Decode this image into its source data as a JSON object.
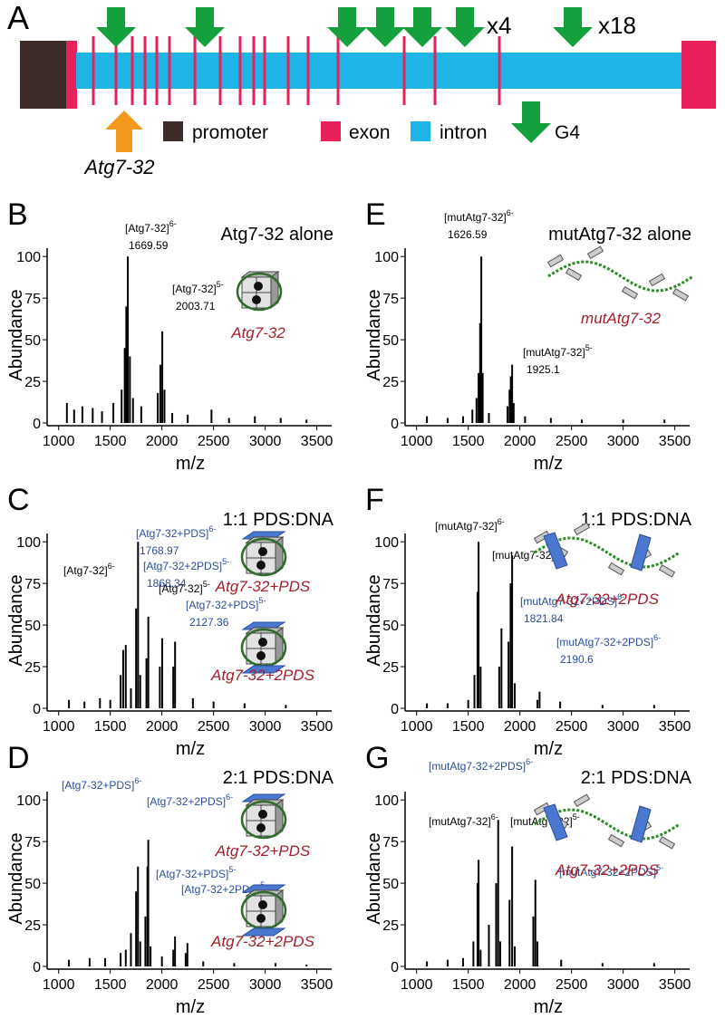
{
  "panel_a": {
    "letter": "A",
    "multipliers": [
      "x4",
      "x18"
    ],
    "probe": "Atg7-32",
    "legend": [
      "promoter",
      "exon",
      "intron",
      "G4"
    ]
  },
  "chart_data": [
    {
      "panel": "B",
      "type": "spectrum",
      "title": "Atg7-32 alone",
      "x_label": "m/z",
      "y_label": "Abundance",
      "color": "#000000",
      "xlim": [
        950,
        3600
      ],
      "xticks": [
        1000,
        1500,
        2000,
        2500,
        3000,
        3500
      ],
      "ylim": [
        0,
        105
      ],
      "yticks": [
        0,
        25,
        50,
        75,
        100
      ],
      "x": [
        1080,
        1150,
        1230,
        1330,
        1420,
        1530,
        1610,
        1640,
        1655,
        1669.59,
        1690,
        1720,
        1800,
        1960,
        1985,
        2003.71,
        2025,
        2100,
        2250,
        2480,
        2650,
        2900,
        3150,
        3400
      ],
      "values": [
        12,
        8,
        10,
        9,
        7,
        12,
        20,
        45,
        70,
        100,
        40,
        15,
        10,
        18,
        35,
        55,
        20,
        6,
        5,
        8,
        3,
        4,
        3,
        2
      ],
      "annotations": [
        {
          "label": "[Atg7-32]",
          "charge": "6-",
          "mz": "1669.59",
          "color": "#000000"
        },
        {
          "label": "[Atg7-32]",
          "charge": "5-",
          "mz": "2003.71",
          "color": "#000000"
        }
      ],
      "inset_labels": [
        "Atg7-32"
      ]
    },
    {
      "panel": "C",
      "type": "spectrum",
      "title": "1:1 PDS:DNA",
      "x_label": "m/z",
      "y_label": "Abundance",
      "color": "#000000",
      "xlim": [
        950,
        3600
      ],
      "xticks": [
        1000,
        1500,
        2000,
        2500,
        3000,
        3500
      ],
      "ylim": [
        0,
        105
      ],
      "yticks": [
        0,
        25,
        50,
        75,
        100
      ],
      "x": [
        1100,
        1250,
        1400,
        1500,
        1600,
        1625,
        1650,
        1700,
        1750,
        1768.97,
        1790,
        1850,
        1868.34,
        1980,
        2003,
        2110,
        2127.36,
        2300,
        2500,
        2800,
        3200
      ],
      "values": [
        5,
        4,
        6,
        5,
        20,
        35,
        38,
        12,
        60,
        100,
        20,
        30,
        55,
        25,
        42,
        25,
        40,
        6,
        4,
        3,
        2
      ],
      "annotations": [
        {
          "label": "[Atg7-32+PDS]",
          "charge": "6-",
          "mz": "1768.97",
          "color": "#2a4d9c"
        },
        {
          "label": "[Atg7-32+2PDS]",
          "charge": "5-",
          "mz": "1868.34",
          "color": "#2a4d9c"
        },
        {
          "label": "[Atg7-32]",
          "charge": "6-",
          "color": "#000000"
        },
        {
          "label": "[Atg7-32]",
          "charge": "5-",
          "color": "#000000"
        },
        {
          "label": "[Atg7-32+PDS]",
          "charge": "5-",
          "mz": "2127.36",
          "color": "#2a4d9c"
        }
      ],
      "inset_labels": [
        "Atg7-32+PDS",
        "Atg7-32+2PDS"
      ]
    },
    {
      "panel": "D",
      "type": "spectrum",
      "title": "2:1 PDS:DNA",
      "x_label": "m/z",
      "y_label": "Abundance",
      "color": "#000000",
      "xlim": [
        950,
        3600
      ],
      "xticks": [
        1000,
        1500,
        2000,
        2500,
        3000,
        3500
      ],
      "ylim": [
        0,
        105
      ],
      "yticks": [
        0,
        25,
        50,
        75,
        100
      ],
      "x": [
        1100,
        1300,
        1450,
        1600,
        1650,
        1700,
        1750,
        1768,
        1790,
        1840,
        1860,
        1868,
        1890,
        2000,
        2110,
        2127,
        2230,
        2247,
        2400,
        2700,
        3100,
        3400
      ],
      "values": [
        4,
        5,
        5,
        8,
        10,
        20,
        45,
        60,
        15,
        30,
        60,
        76,
        12,
        6,
        10,
        18,
        8,
        14,
        3,
        2,
        2,
        1
      ],
      "annotations": [
        {
          "label": "[Atg7-32+PDS]",
          "charge": "6-",
          "color": "#2a4d9c"
        },
        {
          "label": "[Atg7-32+2PDS]",
          "charge": "6-",
          "color": "#2a4d9c"
        },
        {
          "label": "[Atg7-32+PDS]",
          "charge": "5-",
          "color": "#2a4d9c"
        },
        {
          "label": "[Atg7-32+2PDS]",
          "charge": "5-",
          "color": "#2a4d9c"
        }
      ],
      "inset_labels": [
        "Atg7-32+PDS",
        "Atg7-32+2PDS"
      ]
    },
    {
      "panel": "E",
      "type": "spectrum",
      "title": "mutAtg7-32 alone",
      "x_label": "m/z",
      "y_label": "Abundance",
      "color": "#000000",
      "xlim": [
        950,
        3600
      ],
      "xticks": [
        1000,
        1500,
        2000,
        2500,
        3000,
        3500
      ],
      "ylim": [
        0,
        105
      ],
      "yticks": [
        0,
        25,
        50,
        75,
        100
      ],
      "x": [
        1100,
        1300,
        1450,
        1540,
        1580,
        1600,
        1615,
        1626.59,
        1640,
        1700,
        1880,
        1900,
        1912,
        1925.1,
        1940,
        2050,
        2300,
        2600,
        3000,
        3400
      ],
      "values": [
        4,
        3,
        4,
        8,
        15,
        30,
        60,
        100,
        30,
        6,
        10,
        20,
        28,
        35,
        12,
        4,
        3,
        2,
        2,
        2
      ],
      "annotations": [
        {
          "label": "[mutAtg7-32]",
          "charge": "6-",
          "mz": "1626.59",
          "color": "#000000"
        },
        {
          "label": "[mutAtg7-32]",
          "charge": "5-",
          "mz": "1925.1",
          "color": "#000000"
        }
      ],
      "inset_labels": [
        "mutAtg7-32"
      ]
    },
    {
      "panel": "F",
      "type": "spectrum",
      "title": "1:1 PDS:DNA",
      "x_label": "m/z",
      "y_label": "Abundance",
      "color": "#000000",
      "xlim": [
        950,
        3600
      ],
      "xticks": [
        1000,
        1500,
        2000,
        2500,
        3000,
        3500
      ],
      "ylim": [
        0,
        105
      ],
      "yticks": [
        0,
        25,
        50,
        75,
        100
      ],
      "x": [
        1100,
        1300,
        1500,
        1560,
        1590,
        1600,
        1620,
        1800,
        1821.84,
        1890,
        1910,
        1925,
        1950,
        2170,
        2190.6,
        2390,
        2800,
        3300
      ],
      "values": [
        3,
        3,
        5,
        20,
        70,
        100,
        25,
        25,
        48,
        40,
        75,
        92,
        15,
        5,
        10,
        4,
        2,
        2
      ],
      "annotations": [
        {
          "label": "[mutAtg7-32]",
          "charge": "6-",
          "color": "#000000"
        },
        {
          "label": "[mutAtg7-32]",
          "charge": "5-",
          "color": "#000000"
        },
        {
          "label": "[mutAtg7-32+2PDS]",
          "charge": "6-",
          "mz": "1821.84",
          "color": "#2a4d9c"
        },
        {
          "label": "[mutAtg7-32+2PDS]",
          "charge": "6-",
          "mz": "2190.6",
          "color": "#2a4d9c"
        }
      ],
      "inset_labels": [
        "Atg7-32+2PDS"
      ]
    },
    {
      "panel": "G",
      "type": "spectrum",
      "title": "2:1 PDS:DNA",
      "x_label": "m/z",
      "y_label": "Abundance",
      "color": "#000000",
      "xlim": [
        950,
        3600
      ],
      "xticks": [
        1000,
        1500,
        2000,
        2500,
        3000,
        3500
      ],
      "ylim": [
        0,
        105
      ],
      "yticks": [
        0,
        25,
        50,
        75,
        100
      ],
      "x": [
        1100,
        1300,
        1450,
        1550,
        1590,
        1600,
        1620,
        1700,
        1770,
        1790,
        1810,
        1900,
        1925,
        1950,
        2130,
        2150,
        2170,
        2400,
        2800,
        3300
      ],
      "values": [
        3,
        4,
        5,
        15,
        50,
        64,
        10,
        25,
        50,
        88,
        15,
        40,
        72,
        12,
        30,
        52,
        15,
        4,
        2,
        2
      ],
      "annotations": [
        {
          "label": "[mutAtg7-32+2PDS]",
          "charge": "6-",
          "color": "#2a4d9c"
        },
        {
          "label": "[mutAtg7-32]",
          "charge": "6-",
          "color": "#000000"
        },
        {
          "label": "[mutAtg7-32]",
          "charge": "5-",
          "color": "#000000"
        },
        {
          "label": "[mutAtg7-32+2PDS]",
          "charge": "5-",
          "color": "#2a4d9c"
        }
      ],
      "inset_labels": [
        "Atg7-32+2PDS"
      ]
    }
  ]
}
